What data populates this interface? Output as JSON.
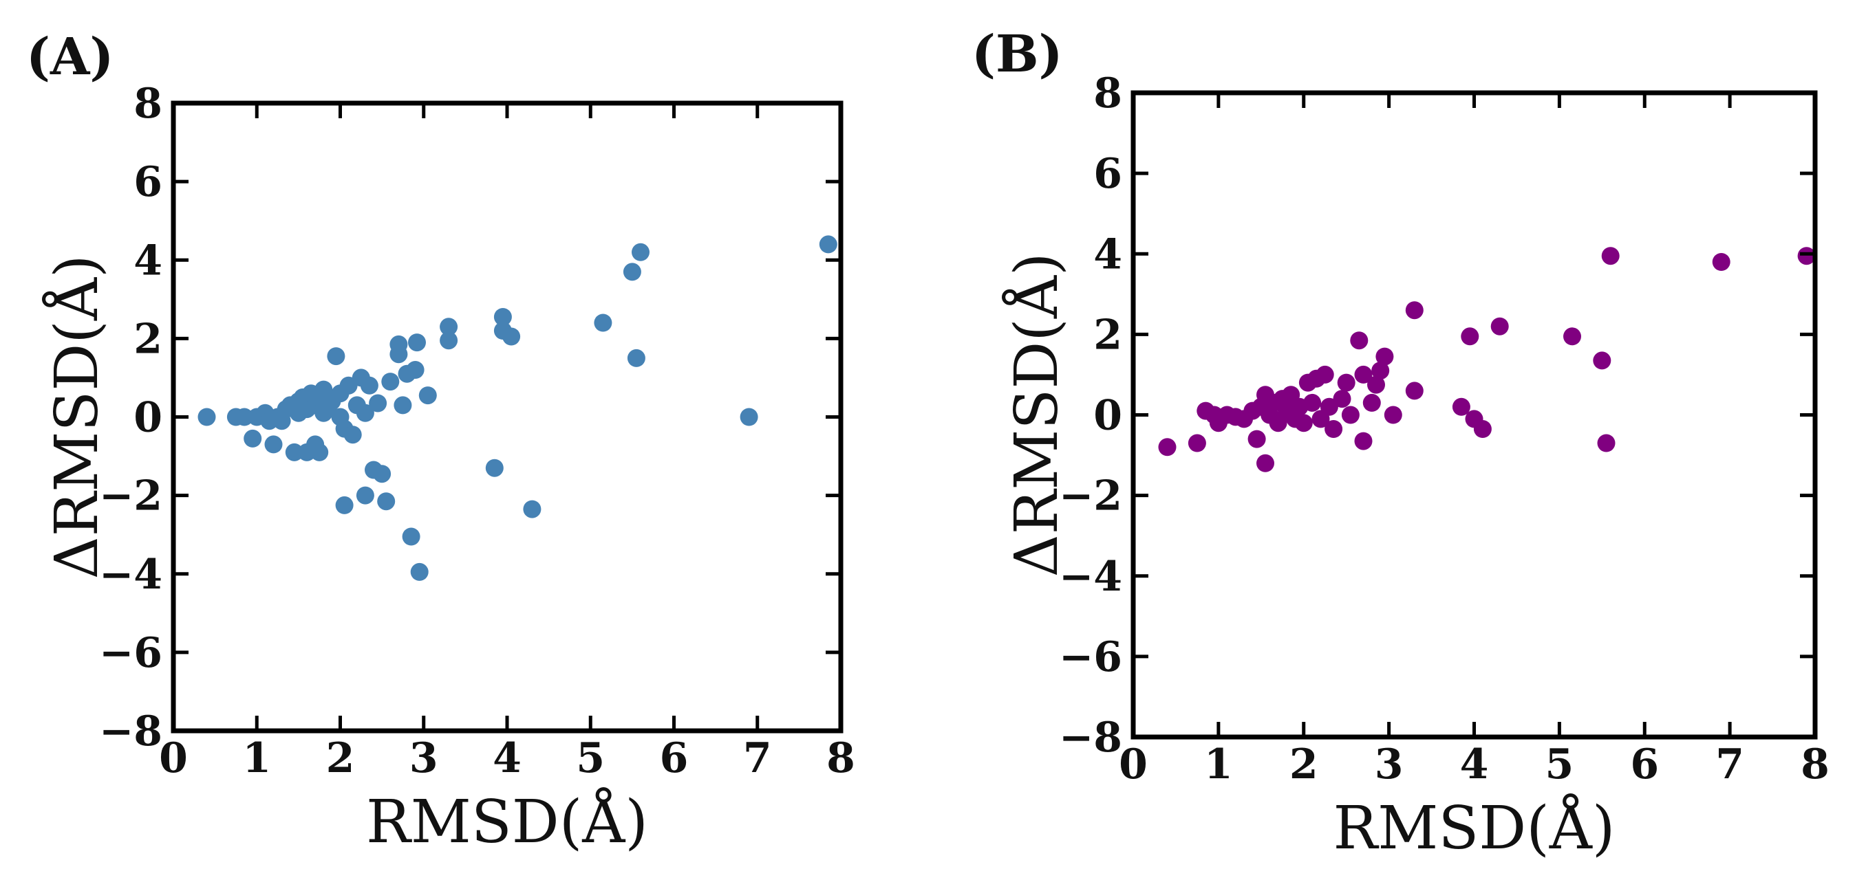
{
  "chart_data": [
    {
      "type": "scatter",
      "panel_label": "(A)",
      "xlabel": "RMSD(Å)",
      "ylabel": "ΔRMSD(Å)",
      "xlim": [
        0,
        8
      ],
      "ylim": [
        -8,
        8
      ],
      "xticks": [
        0,
        1,
        2,
        3,
        4,
        5,
        6,
        7,
        8
      ],
      "yticks": [
        -8,
        -6,
        -4,
        -2,
        0,
        2,
        4,
        6,
        8
      ],
      "xtick_labels": [
        "0",
        "1",
        "2",
        "3",
        "4",
        "5",
        "6",
        "7",
        "8"
      ],
      "ytick_labels": [
        "−8",
        "−6",
        "−4",
        "−2",
        "0",
        "2",
        "4",
        "6",
        "8"
      ],
      "color": "#4682b4",
      "points": [
        [
          0.4,
          0.0
        ],
        [
          0.75,
          0.0
        ],
        [
          0.85,
          0.0
        ],
        [
          0.95,
          -0.55
        ],
        [
          1.0,
          0.0
        ],
        [
          1.1,
          0.1
        ],
        [
          1.15,
          -0.1
        ],
        [
          1.2,
          -0.7
        ],
        [
          1.25,
          0.0
        ],
        [
          1.3,
          -0.1
        ],
        [
          1.35,
          0.2
        ],
        [
          1.4,
          0.3
        ],
        [
          1.45,
          -0.9
        ],
        [
          1.5,
          0.1
        ],
        [
          1.5,
          0.4
        ],
        [
          1.55,
          0.5
        ],
        [
          1.6,
          -0.9
        ],
        [
          1.6,
          0.2
        ],
        [
          1.65,
          0.6
        ],
        [
          1.7,
          -0.7
        ],
        [
          1.7,
          0.3
        ],
        [
          1.75,
          0.5
        ],
        [
          1.75,
          -0.9
        ],
        [
          1.8,
          0.1
        ],
        [
          1.8,
          0.7
        ],
        [
          1.85,
          0.2
        ],
        [
          1.9,
          0.4
        ],
        [
          1.95,
          1.55
        ],
        [
          2.0,
          0.6
        ],
        [
          2.0,
          0.0
        ],
        [
          2.05,
          -0.3
        ],
        [
          2.05,
          -2.25
        ],
        [
          2.1,
          0.8
        ],
        [
          2.15,
          -0.45
        ],
        [
          2.2,
          0.3
        ],
        [
          2.25,
          1.0
        ],
        [
          2.3,
          0.1
        ],
        [
          2.3,
          -2.0
        ],
        [
          2.35,
          0.8
        ],
        [
          2.4,
          -1.35
        ],
        [
          2.45,
          0.35
        ],
        [
          2.5,
          -1.45
        ],
        [
          2.55,
          -2.15
        ],
        [
          2.6,
          0.9
        ],
        [
          2.7,
          1.6
        ],
        [
          2.7,
          1.85
        ],
        [
          2.75,
          0.3
        ],
        [
          2.8,
          1.1
        ],
        [
          2.85,
          -3.05
        ],
        [
          2.9,
          1.2
        ],
        [
          2.92,
          1.9
        ],
        [
          2.95,
          -3.95
        ],
        [
          3.05,
          0.55
        ],
        [
          3.3,
          2.3
        ],
        [
          3.3,
          1.95
        ],
        [
          3.85,
          -1.3
        ],
        [
          3.95,
          2.55
        ],
        [
          3.95,
          2.2
        ],
        [
          4.05,
          2.05
        ],
        [
          4.3,
          -2.35
        ],
        [
          5.15,
          2.4
        ],
        [
          5.5,
          3.7
        ],
        [
          5.55,
          1.5
        ],
        [
          5.6,
          4.2
        ],
        [
          6.9,
          0.0
        ],
        [
          7.85,
          4.4
        ]
      ]
    },
    {
      "type": "scatter",
      "panel_label": "(B)",
      "xlabel": "RMSD(Å)",
      "ylabel": "ΔRMSD(Å)",
      "xlim": [
        0,
        8
      ],
      "ylim": [
        -8,
        8
      ],
      "xticks": [
        0,
        1,
        2,
        3,
        4,
        5,
        6,
        7,
        8
      ],
      "yticks": [
        -8,
        -6,
        -4,
        -2,
        0,
        2,
        4,
        6,
        8
      ],
      "xtick_labels": [
        "0",
        "1",
        "2",
        "3",
        "4",
        "5",
        "6",
        "7",
        "8"
      ],
      "ytick_labels": [
        "−8",
        "−6",
        "−4",
        "−2",
        "0",
        "2",
        "4",
        "6",
        "8"
      ],
      "color": "#800080",
      "points": [
        [
          0.4,
          -0.8
        ],
        [
          0.75,
          -0.7
        ],
        [
          0.85,
          0.1
        ],
        [
          0.95,
          0.0
        ],
        [
          1.0,
          -0.2
        ],
        [
          1.1,
          0.0
        ],
        [
          1.2,
          -0.05
        ],
        [
          1.3,
          -0.1
        ],
        [
          1.4,
          0.1
        ],
        [
          1.45,
          -0.6
        ],
        [
          1.5,
          0.2
        ],
        [
          1.55,
          -1.2
        ],
        [
          1.55,
          0.5
        ],
        [
          1.6,
          0.0
        ],
        [
          1.65,
          0.3
        ],
        [
          1.7,
          -0.2
        ],
        [
          1.75,
          0.4
        ],
        [
          1.8,
          0.1
        ],
        [
          1.85,
          0.5
        ],
        [
          1.9,
          -0.1
        ],
        [
          1.95,
          0.2
        ],
        [
          2.0,
          -0.2
        ],
        [
          2.05,
          0.8
        ],
        [
          2.1,
          0.3
        ],
        [
          2.15,
          0.9
        ],
        [
          2.2,
          -0.1
        ],
        [
          2.25,
          1.0
        ],
        [
          2.3,
          0.2
        ],
        [
          2.35,
          -0.35
        ],
        [
          2.45,
          0.4
        ],
        [
          2.5,
          0.8
        ],
        [
          2.55,
          0.0
        ],
        [
          2.65,
          1.85
        ],
        [
          2.7,
          1.0
        ],
        [
          2.7,
          -0.65
        ],
        [
          2.8,
          0.3
        ],
        [
          2.85,
          0.75
        ],
        [
          2.9,
          1.1
        ],
        [
          2.95,
          1.45
        ],
        [
          3.05,
          0.0
        ],
        [
          3.3,
          2.6
        ],
        [
          3.3,
          0.6
        ],
        [
          3.85,
          0.2
        ],
        [
          3.95,
          1.95
        ],
        [
          4.0,
          -0.1
        ],
        [
          4.1,
          -0.35
        ],
        [
          4.3,
          2.2
        ],
        [
          5.15,
          1.95
        ],
        [
          5.5,
          1.35
        ],
        [
          5.55,
          -0.7
        ],
        [
          5.6,
          3.95
        ],
        [
          6.9,
          3.8
        ],
        [
          7.9,
          3.95
        ]
      ]
    }
  ]
}
